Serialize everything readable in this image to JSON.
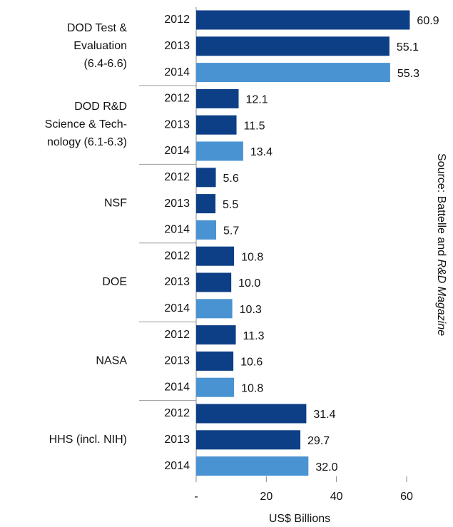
{
  "chart_data": {
    "type": "bar",
    "orientation": "horizontal",
    "categories": [
      "DOD Test &\nEvaluation\n(6.4-6.6)",
      "DOD R&D\nScience & Tech-\nnology (6.1-6.3)",
      "NSF",
      "DOE",
      "NASA",
      "HHS (incl. NIH)"
    ],
    "series": [
      {
        "name": "2012",
        "color": "#0d3f86",
        "values": [
          60.9,
          12.1,
          5.6,
          10.8,
          11.3,
          31.4
        ],
        "value_labels": [
          "60.9",
          "12.1",
          "5.6",
          "10.8",
          "11.3",
          "31.4"
        ]
      },
      {
        "name": "2013",
        "color": "#0d3f86",
        "values": [
          55.1,
          11.5,
          5.5,
          10.0,
          10.6,
          29.7
        ],
        "value_labels": [
          "55.1",
          "11.5",
          "5.5",
          "10.0",
          "10.6",
          "29.7"
        ]
      },
      {
        "name": "2014",
        "color": "#4a93d3",
        "values": [
          55.3,
          13.4,
          5.7,
          10.3,
          10.8,
          32.0
        ],
        "value_labels": [
          "55.3",
          "13.4",
          "5.7",
          "10.3",
          "10.8",
          "32.0"
        ]
      }
    ],
    "xlim": [
      0,
      60
    ],
    "xticks": [
      {
        "value": 0,
        "label": "-"
      },
      20,
      40,
      60
    ],
    "xlabel": "US$ Billions",
    "source": {
      "text": "Source: Battelle and",
      "emphasis": "R&D Magazine"
    }
  }
}
